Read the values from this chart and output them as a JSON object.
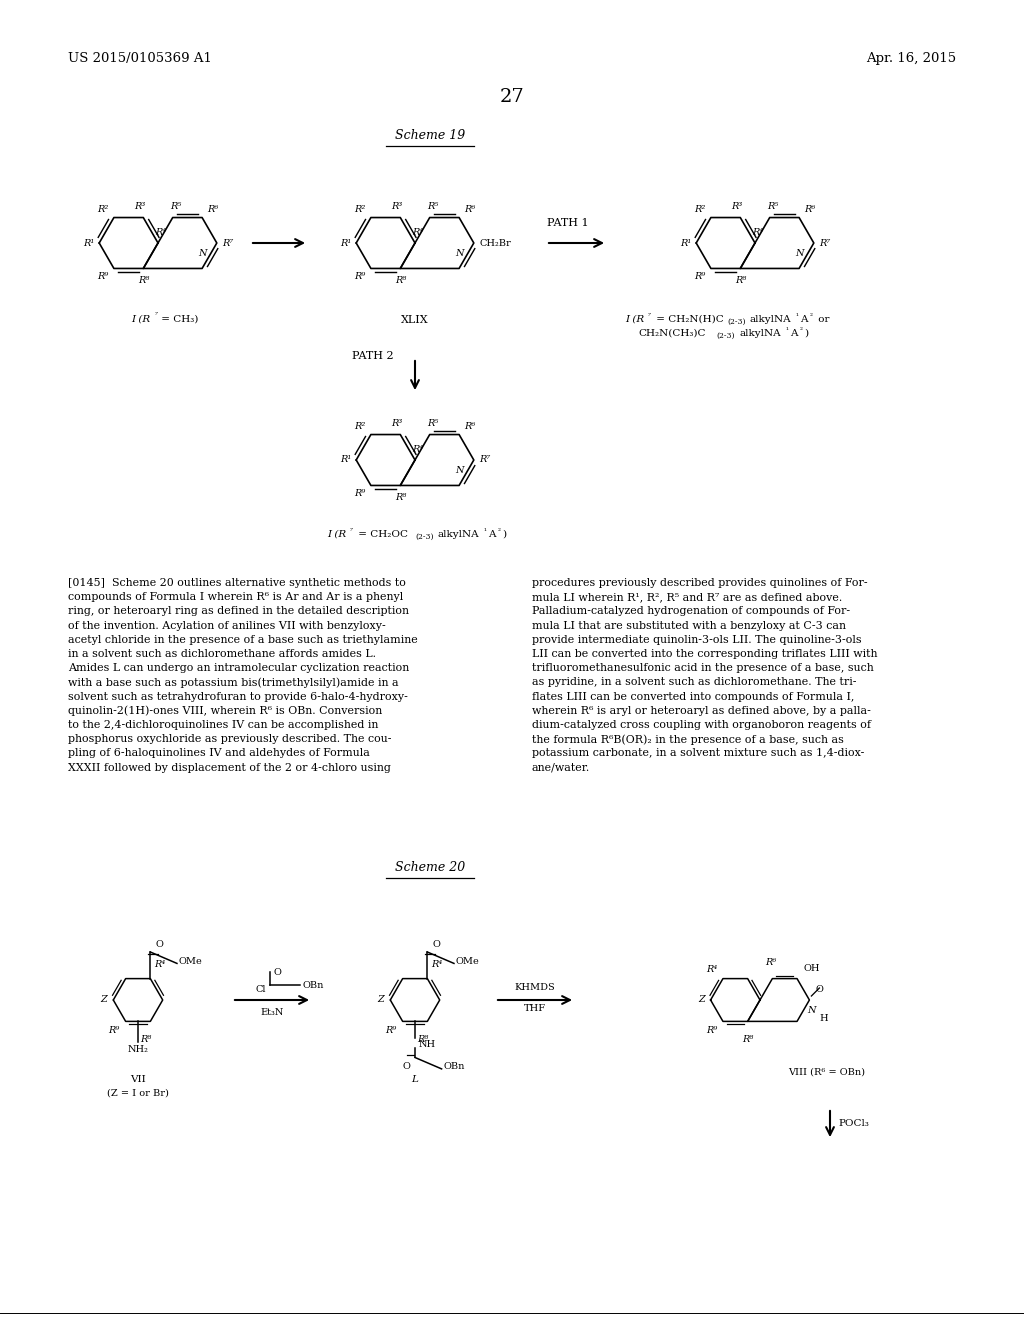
{
  "background_color": "#ffffff",
  "header_left": "US 2015/0105369 A1",
  "header_right": "Apr. 16, 2015",
  "page_number": "27",
  "scheme19_title": "Scheme 19",
  "scheme20_title": "Scheme 20",
  "para1_line1": "[0145]  Scheme 20 outlines alternative synthetic methods to",
  "para1_line2": "compounds of Formula I wherein R⁶ is Ar and Ar is a phenyl",
  "para1_line3": "ring, or heteroaryl ring as defined in the detailed description",
  "para1_line4": "of the invention. Acylation of anilines VII with benzyloxy-",
  "para1_line5": "acetyl chloride in the presence of a base such as triethylamine",
  "para1_line6": "in a solvent such as dichloromethane affords amides L.",
  "para1_line7": "Amides L can undergo an intramolecular cyclization reaction",
  "para1_line8": "with a base such as potassium bis(trimethylsilyl)amide in a",
  "para1_line9": "solvent such as tetrahydrofuran to provide 6-halo-4-hydroxy-",
  "para1_line10": "quinolin-2(1H)-ones VIII, wherein R⁶ is OBn. Conversion",
  "para1_line11": "to the 2,4-dichloroquinolines IV can be accomplished in",
  "para1_line12": "phosphorus oxychloride as previously described. The cou-",
  "para1_line13": "pling of 6-haloquinolines IV and aldehydes of Formula",
  "para1_line14": "XXXII followed by displacement of the 2 or 4-chloro using",
  "para2_line1": "procedures previously described provides quinolines of For-",
  "para2_line2": "mula LI wherein R¹, R², R⁵ and R⁷ are as defined above.",
  "para2_line3": "Palladium-catalyzed hydrogenation of compounds of For-",
  "para2_line4": "mula LI that are substituted with a benzyloxy at C-3 can",
  "para2_line5": "provide intermediate quinolin-3-ols LII. The quinoline-3-ols",
  "para2_line6": "LII can be converted into the corresponding triflates LIII with",
  "para2_line7": "trifluoromethanesulfonic acid in the presence of a base, such",
  "para2_line8": "as pyridine, in a solvent such as dichloromethane. The tri-",
  "para2_line9": "flates LIII can be converted into compounds of Formula I,",
  "para2_line10": "wherein R⁶ is aryl or heteroaryl as defined above, by a palla-",
  "para2_line11": "dium-catalyzed cross coupling with organoboron reagents of",
  "para2_line12": "the formula R⁶B(OR)₂ in the presence of a base, such as",
  "para2_line13": "potassium carbonate, in a solvent mixture such as 1,4-diox-",
  "para2_line14": "ane/water."
}
